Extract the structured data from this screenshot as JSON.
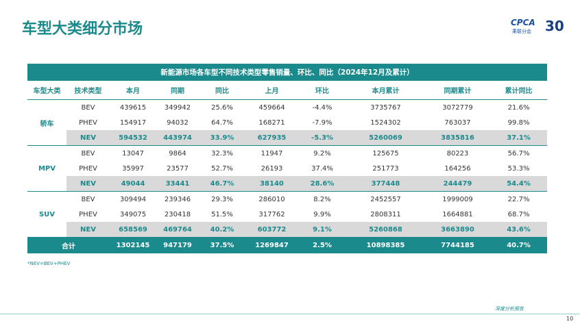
{
  "header": {
    "title": "车型大类细分市场",
    "logo": "CPCA",
    "logo_sub": "乘联分会",
    "anniversary": "30"
  },
  "table": {
    "title": "新能源市场各车型不同技术类型零售销量、环比、同比（2024年12月及累计）",
    "columns": [
      "车型大类",
      "技术类型",
      "本月",
      "同期",
      "同比",
      "上月",
      "环比",
      "本月累计",
      "同期累计",
      "累计同比"
    ],
    "groups": [
      {
        "name": "轿车",
        "rows": [
          [
            "BEV",
            "439615",
            "349942",
            "25.6%",
            "459664",
            "-4.4%",
            "3735767",
            "3072779",
            "21.6%"
          ],
          [
            "PHEV",
            "154917",
            "94032",
            "64.7%",
            "168271",
            "-7.9%",
            "1524302",
            "763037",
            "99.8%"
          ],
          [
            "NEV",
            "594532",
            "443974",
            "33.9%",
            "627935",
            "-5.3%",
            "5260069",
            "3835816",
            "37.1%"
          ]
        ]
      },
      {
        "name": "MPV",
        "rows": [
          [
            "BEV",
            "13047",
            "9864",
            "32.3%",
            "11947",
            "9.2%",
            "125675",
            "80223",
            "56.7%"
          ],
          [
            "PHEV",
            "35997",
            "23577",
            "52.7%",
            "26193",
            "37.4%",
            "251773",
            "164256",
            "53.3%"
          ],
          [
            "NEV",
            "49044",
            "33441",
            "46.7%",
            "38140",
            "28.6%",
            "377448",
            "244479",
            "54.4%"
          ]
        ]
      },
      {
        "name": "SUV",
        "rows": [
          [
            "BEV",
            "309494",
            "239346",
            "29.3%",
            "286010",
            "8.2%",
            "2452557",
            "1999009",
            "22.7%"
          ],
          [
            "PHEV",
            "349075",
            "230418",
            "51.5%",
            "317762",
            "9.9%",
            "2808311",
            "1664881",
            "68.7%"
          ],
          [
            "NEV",
            "658569",
            "469764",
            "40.2%",
            "603772",
            "9.1%",
            "5260868",
            "3663890",
            "43.6%"
          ]
        ]
      }
    ],
    "total": [
      "合计",
      "1302145",
      "947179",
      "37.5%",
      "1269847",
      "2.5%",
      "10898385",
      "7744185",
      "40.7%"
    ],
    "note": "*NEV=BEV+PHEV"
  },
  "footer": {
    "text": "深度分析报告",
    "page": "10"
  }
}
